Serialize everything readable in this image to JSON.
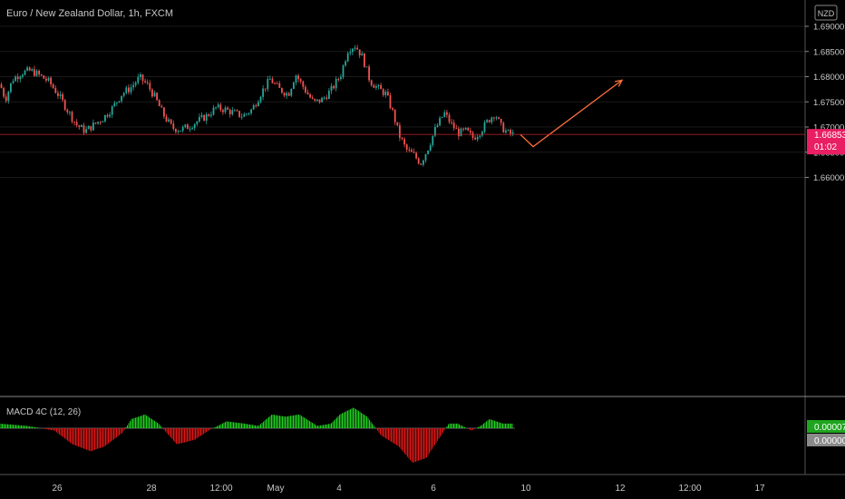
{
  "header": {
    "title": "Euro / New Zealand Dollar, 1h, FXCM"
  },
  "currency_badge": "NZD",
  "colors": {
    "background": "#000000",
    "up_candle": "#26a69a",
    "down_candle": "#ef5350",
    "price_line": "#e53935",
    "price_tag_bg": "#e91e63",
    "annotation": "#ff6f3c",
    "macd_up": "#1fd11f",
    "macd_down": "#e01616",
    "axis_text": "#c8c8c8",
    "grid": "#1a1a1a",
    "separator": "#888888"
  },
  "price_tag": {
    "price": "1.66853",
    "countdown": "01:02",
    "value": 1.66853
  },
  "price_axis": {
    "ticks": [
      "1.69000",
      "1.68500",
      "1.68000",
      "1.67500",
      "1.67000",
      "1.66500",
      "1.66000"
    ],
    "values": [
      1.69,
      1.685,
      1.68,
      1.675,
      1.67,
      1.665,
      1.66
    ]
  },
  "time_axis": {
    "labels": [
      "26",
      "28",
      "12:00",
      "May",
      "4",
      "6",
      "10",
      "12",
      "12:00",
      "17"
    ]
  },
  "macd": {
    "label": "MACD 4C (12, 26)",
    "value_tag": "0.00007",
    "zero_tag": "0.00000"
  },
  "chart_data": {
    "type": "candlestick",
    "title": "Euro / New Zealand Dollar, 1h, FXCM",
    "ylim": [
      1.658,
      1.6915
    ],
    "close_path": [
      [
        0,
        1.6785
      ],
      [
        6,
        1.6755
      ],
      [
        14,
        1.6795
      ],
      [
        24,
        1.6808
      ],
      [
        34,
        1.6812
      ],
      [
        44,
        1.6802
      ],
      [
        54,
        1.679
      ],
      [
        64,
        1.6765
      ],
      [
        74,
        1.6735
      ],
      [
        84,
        1.6705
      ],
      [
        94,
        1.6692
      ],
      [
        104,
        1.6705
      ],
      [
        114,
        1.6718
      ],
      [
        124,
        1.6738
      ],
      [
        134,
        1.6765
      ],
      [
        144,
        1.6778
      ],
      [
        154,
        1.6798
      ],
      [
        162,
        1.6785
      ],
      [
        170,
        1.6762
      ],
      [
        180,
        1.6725
      ],
      [
        190,
        1.6698
      ],
      [
        200,
        1.6695
      ],
      [
        210,
        1.6703
      ],
      [
        218,
        1.6712
      ],
      [
        228,
        1.6722
      ],
      [
        238,
        1.6738
      ],
      [
        248,
        1.6735
      ],
      [
        258,
        1.6728
      ],
      [
        268,
        1.6722
      ],
      [
        278,
        1.6735
      ],
      [
        288,
        1.6768
      ],
      [
        298,
        1.6795
      ],
      [
        308,
        1.6775
      ],
      [
        318,
        1.6765
      ],
      [
        326,
        1.6805
      ],
      [
        336,
        1.6775
      ],
      [
        346,
        1.6748
      ],
      [
        356,
        1.6755
      ],
      [
        366,
        1.6775
      ],
      [
        376,
        1.6805
      ],
      [
        384,
        1.6855
      ],
      [
        392,
        1.6862
      ],
      [
        400,
        1.6838
      ],
      [
        408,
        1.6792
      ],
      [
        416,
        1.6778
      ],
      [
        426,
        1.6765
      ],
      [
        434,
        1.6725
      ],
      [
        440,
        1.6685
      ],
      [
        448,
        1.6655
      ],
      [
        456,
        1.6645
      ],
      [
        464,
        1.6628
      ],
      [
        472,
        1.6658
      ],
      [
        480,
        1.6695
      ],
      [
        490,
        1.6728
      ],
      [
        498,
        1.6705
      ],
      [
        506,
        1.6688
      ],
      [
        514,
        1.6692
      ],
      [
        522,
        1.6678
      ],
      [
        530,
        1.6692
      ],
      [
        538,
        1.6712
      ],
      [
        546,
        1.6728
      ],
      [
        552,
        1.6702
      ],
      [
        560,
        1.6688
      ],
      [
        566,
        1.6685
      ]
    ],
    "projection": [
      [
        574,
        1.6685
      ],
      [
        588,
        1.6661
      ],
      [
        686,
        1.6793
      ]
    ],
    "macd_path": [
      [
        0,
        2e-05
      ],
      [
        30,
        1e-05
      ],
      [
        60,
        -1e-05
      ],
      [
        80,
        -7e-05
      ],
      [
        100,
        -0.0001
      ],
      [
        115,
        -8e-05
      ],
      [
        135,
        -2e-05
      ],
      [
        145,
        4e-05
      ],
      [
        160,
        6e-05
      ],
      [
        175,
        2e-05
      ],
      [
        195,
        -7e-05
      ],
      [
        215,
        -5e-05
      ],
      [
        230,
        -1e-05
      ],
      [
        250,
        3e-05
      ],
      [
        270,
        2e-05
      ],
      [
        285,
        1e-05
      ],
      [
        300,
        6e-05
      ],
      [
        315,
        5e-05
      ],
      [
        330,
        6e-05
      ],
      [
        350,
        1e-05
      ],
      [
        365,
        2e-05
      ],
      [
        375,
        6e-05
      ],
      [
        390,
        9e-05
      ],
      [
        405,
        5e-05
      ],
      [
        420,
        -3e-05
      ],
      [
        440,
        -8e-05
      ],
      [
        455,
        -0.00015
      ],
      [
        470,
        -0.00013
      ],
      [
        485,
        -4e-05
      ],
      [
        495,
        2e-05
      ],
      [
        505,
        2e-05
      ],
      [
        520,
        -1e-05
      ],
      [
        530,
        1e-05
      ],
      [
        540,
        4e-05
      ],
      [
        555,
        2e-05
      ],
      [
        566,
        2e-05
      ]
    ]
  }
}
